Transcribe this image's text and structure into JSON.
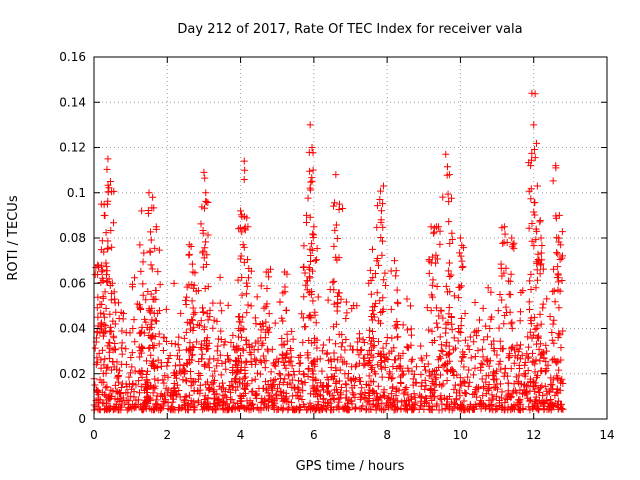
{
  "chart_data": {
    "type": "scatter",
    "title": "Day 212 of 2017, Rate Of TEC Index for receiver vala",
    "xlabel": "GPS time / hours",
    "ylabel": "ROTI / TECUs",
    "xlim": [
      0,
      14
    ],
    "ylim": [
      0,
      0.16
    ],
    "xticks": [
      0,
      2,
      4,
      6,
      8,
      10,
      12,
      14
    ],
    "xtick_labels": [
      "0",
      "2",
      "4",
      "6",
      "8",
      "10",
      "12",
      "14"
    ],
    "yticks": [
      0,
      0.02,
      0.04,
      0.06,
      0.08,
      0.1,
      0.12,
      0.14,
      0.16
    ],
    "ytick_labels": [
      "0",
      "0.02",
      "0.04",
      "0.06",
      "0.08",
      "0.1",
      "0.12",
      "0.14",
      "0.16"
    ],
    "grid": true,
    "marker": "+",
    "color": "#ff0000",
    "data_extent_x": [
      0,
      12.8
    ],
    "baseline_band": [
      0.004,
      0.035
    ],
    "peaks": [
      {
        "x": 0.1,
        "y": 0.068
      },
      {
        "x": 0.2,
        "y": 0.095
      },
      {
        "x": 0.3,
        "y": 0.09
      },
      {
        "x": 0.38,
        "y": 0.115
      },
      {
        "x": 0.45,
        "y": 0.105
      },
      {
        "x": 0.5,
        "y": 0.06
      },
      {
        "x": 1.3,
        "y": 0.092
      },
      {
        "x": 1.5,
        "y": 0.1
      },
      {
        "x": 1.6,
        "y": 0.098
      },
      {
        "x": 1.7,
        "y": 0.085
      },
      {
        "x": 2.6,
        "y": 0.077
      },
      {
        "x": 2.7,
        "y": 0.065
      },
      {
        "x": 3.0,
        "y": 0.109
      },
      {
        "x": 3.05,
        "y": 0.1
      },
      {
        "x": 4.0,
        "y": 0.092
      },
      {
        "x": 4.1,
        "y": 0.114
      },
      {
        "x": 4.2,
        "y": 0.085
      },
      {
        "x": 4.7,
        "y": 0.065
      },
      {
        "x": 5.2,
        "y": 0.065
      },
      {
        "x": 5.8,
        "y": 0.09
      },
      {
        "x": 5.9,
        "y": 0.13
      },
      {
        "x": 5.95,
        "y": 0.12
      },
      {
        "x": 6.0,
        "y": 0.085
      },
      {
        "x": 6.6,
        "y": 0.108
      },
      {
        "x": 6.7,
        "y": 0.095
      },
      {
        "x": 7.6,
        "y": 0.075
      },
      {
        "x": 7.8,
        "y": 0.097
      },
      {
        "x": 7.9,
        "y": 0.103
      },
      {
        "x": 8.2,
        "y": 0.07
      },
      {
        "x": 9.2,
        "y": 0.085
      },
      {
        "x": 9.4,
        "y": 0.085
      },
      {
        "x": 9.6,
        "y": 0.117
      },
      {
        "x": 9.7,
        "y": 0.108
      },
      {
        "x": 10.0,
        "y": 0.08
      },
      {
        "x": 11.2,
        "y": 0.085
      },
      {
        "x": 11.4,
        "y": 0.08
      },
      {
        "x": 11.95,
        "y": 0.144
      },
      {
        "x": 12.0,
        "y": 0.13
      },
      {
        "x": 12.1,
        "y": 0.103
      },
      {
        "x": 12.2,
        "y": 0.08
      },
      {
        "x": 12.6,
        "y": 0.112
      },
      {
        "x": 12.7,
        "y": 0.09
      }
    ]
  }
}
